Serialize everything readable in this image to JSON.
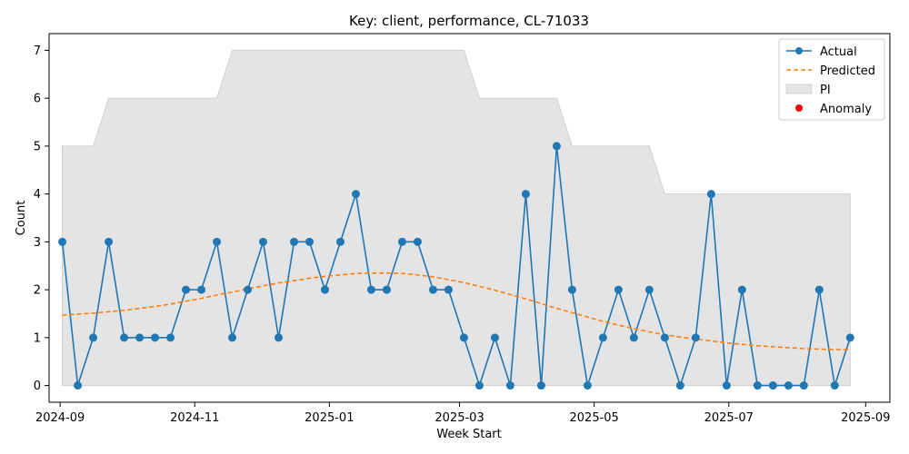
{
  "chart_data": {
    "type": "line",
    "title": "Key: client, performance, CL-71033",
    "xlabel": "Week Start",
    "ylabel": "Count",
    "ylim": [
      -0.35,
      7.35
    ],
    "xlim": [
      "2024-08-27",
      "2025-09-12"
    ],
    "x_tick_labels": [
      "2024-09",
      "2024-11",
      "2025-01",
      "2025-03",
      "2025-05",
      "2025-07",
      "2025-09"
    ],
    "y_tick_labels": [
      "0",
      "1",
      "2",
      "3",
      "4",
      "5",
      "6",
      "7"
    ],
    "legend": {
      "placement": "top-right",
      "entries": [
        "Actual",
        "Predicted",
        "PI",
        "Anomaly"
      ]
    },
    "colors": {
      "actual": "#1f77b4",
      "predicted": "#ff7f0e",
      "pi": "#e4e4e4",
      "anomaly": "#ff0000"
    },
    "grid": false,
    "dates": [
      "2024-09-02",
      "2024-09-09",
      "2024-09-16",
      "2024-09-23",
      "2024-09-30",
      "2024-10-07",
      "2024-10-14",
      "2024-10-21",
      "2024-10-28",
      "2024-11-04",
      "2024-11-11",
      "2024-11-18",
      "2024-11-25",
      "2024-12-02",
      "2024-12-09",
      "2024-12-16",
      "2024-12-23",
      "2024-12-30",
      "2025-01-06",
      "2025-01-13",
      "2025-01-20",
      "2025-01-27",
      "2025-02-03",
      "2025-02-10",
      "2025-02-17",
      "2025-02-24",
      "2025-03-03",
      "2025-03-10",
      "2025-03-17",
      "2025-03-24",
      "2025-03-31",
      "2025-04-07",
      "2025-04-14",
      "2025-04-21",
      "2025-04-28",
      "2025-05-05",
      "2025-05-12",
      "2025-05-19",
      "2025-05-26",
      "2025-06-02",
      "2025-06-09",
      "2025-06-16",
      "2025-06-23",
      "2025-06-30",
      "2025-07-07",
      "2025-07-14",
      "2025-07-21",
      "2025-07-28",
      "2025-08-04",
      "2025-08-11",
      "2025-08-18",
      "2025-08-25"
    ],
    "series": [
      {
        "name": "Actual",
        "values": [
          3,
          0,
          1,
          3,
          1,
          1,
          1,
          1,
          2,
          2,
          3,
          1,
          2,
          3,
          1,
          3,
          3,
          2,
          3,
          4,
          2,
          2,
          3,
          3,
          2,
          2,
          1,
          0,
          1,
          0,
          4,
          0,
          5,
          2,
          0,
          1,
          2,
          1,
          2,
          1,
          0,
          1,
          4,
          0,
          2,
          0,
          0,
          0,
          0,
          2,
          0,
          1
        ]
      },
      {
        "name": "Predicted",
        "values": [
          1.47,
          1.49,
          1.51,
          1.54,
          1.57,
          1.61,
          1.65,
          1.7,
          1.76,
          1.82,
          1.89,
          1.95,
          2.02,
          2.08,
          2.14,
          2.19,
          2.24,
          2.28,
          2.31,
          2.34,
          2.35,
          2.35,
          2.34,
          2.31,
          2.27,
          2.21,
          2.15,
          2.07,
          1.99,
          1.9,
          1.81,
          1.71,
          1.61,
          1.52,
          1.43,
          1.34,
          1.26,
          1.19,
          1.12,
          1.06,
          1.01,
          0.97,
          0.93,
          0.89,
          0.86,
          0.83,
          0.81,
          0.79,
          0.77,
          0.76,
          0.75,
          0.75
        ]
      }
    ],
    "pi_lower": [
      0,
      0,
      0,
      0,
      0,
      0,
      0,
      0,
      0,
      0,
      0,
      0,
      0,
      0,
      0,
      0,
      0,
      0,
      0,
      0,
      0,
      0,
      0,
      0,
      0,
      0,
      0,
      0,
      0,
      0,
      0,
      0,
      0,
      0,
      0,
      0,
      0,
      0,
      0,
      0,
      0,
      0,
      0,
      0,
      0,
      0,
      0,
      0,
      0,
      0,
      0,
      0
    ],
    "pi_upper": [
      5,
      5,
      5,
      6,
      6,
      6,
      6,
      6,
      6,
      6,
      6,
      7,
      7,
      7,
      7,
      7,
      7,
      7,
      7,
      7,
      7,
      7,
      7,
      7,
      7,
      7,
      7,
      6,
      6,
      6,
      6,
      6,
      6,
      5,
      5,
      5,
      5,
      5,
      5,
      4,
      4,
      4,
      4,
      4,
      4,
      4,
      4,
      4,
      4,
      4,
      4,
      4
    ],
    "anomalies": []
  }
}
